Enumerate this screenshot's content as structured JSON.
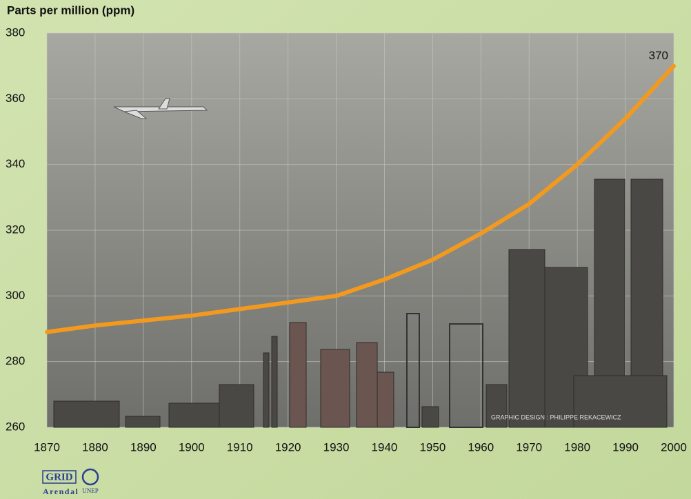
{
  "chart_data": {
    "type": "line",
    "y_axis_label": "Parts per million (ppm)",
    "x": [
      1870,
      1880,
      1890,
      1900,
      1910,
      1920,
      1930,
      1940,
      1950,
      1960,
      1970,
      1980,
      1990,
      2000
    ],
    "series": [
      {
        "color": "#f39a1e",
        "values": [
          289,
          291,
          292.5,
          294,
          296,
          298,
          300,
          305,
          311,
          319,
          328,
          340,
          354,
          370
        ]
      }
    ],
    "xlim": [
      1870,
      2000
    ],
    "xticks": [
      1870,
      1880,
      1890,
      1900,
      1910,
      1920,
      1930,
      1940,
      1950,
      1960,
      1970,
      1980,
      1990,
      2000
    ],
    "ylim": [
      260,
      380
    ],
    "yticks": [
      260,
      280,
      300,
      320,
      340,
      360,
      380
    ],
    "grid": true,
    "credit": "GRAPHIC DESIGN : PHILIPPE REKACEWICZ",
    "logo": {
      "grid": "GRID",
      "arendal": "Arendal",
      "unep": "UNEP"
    }
  }
}
